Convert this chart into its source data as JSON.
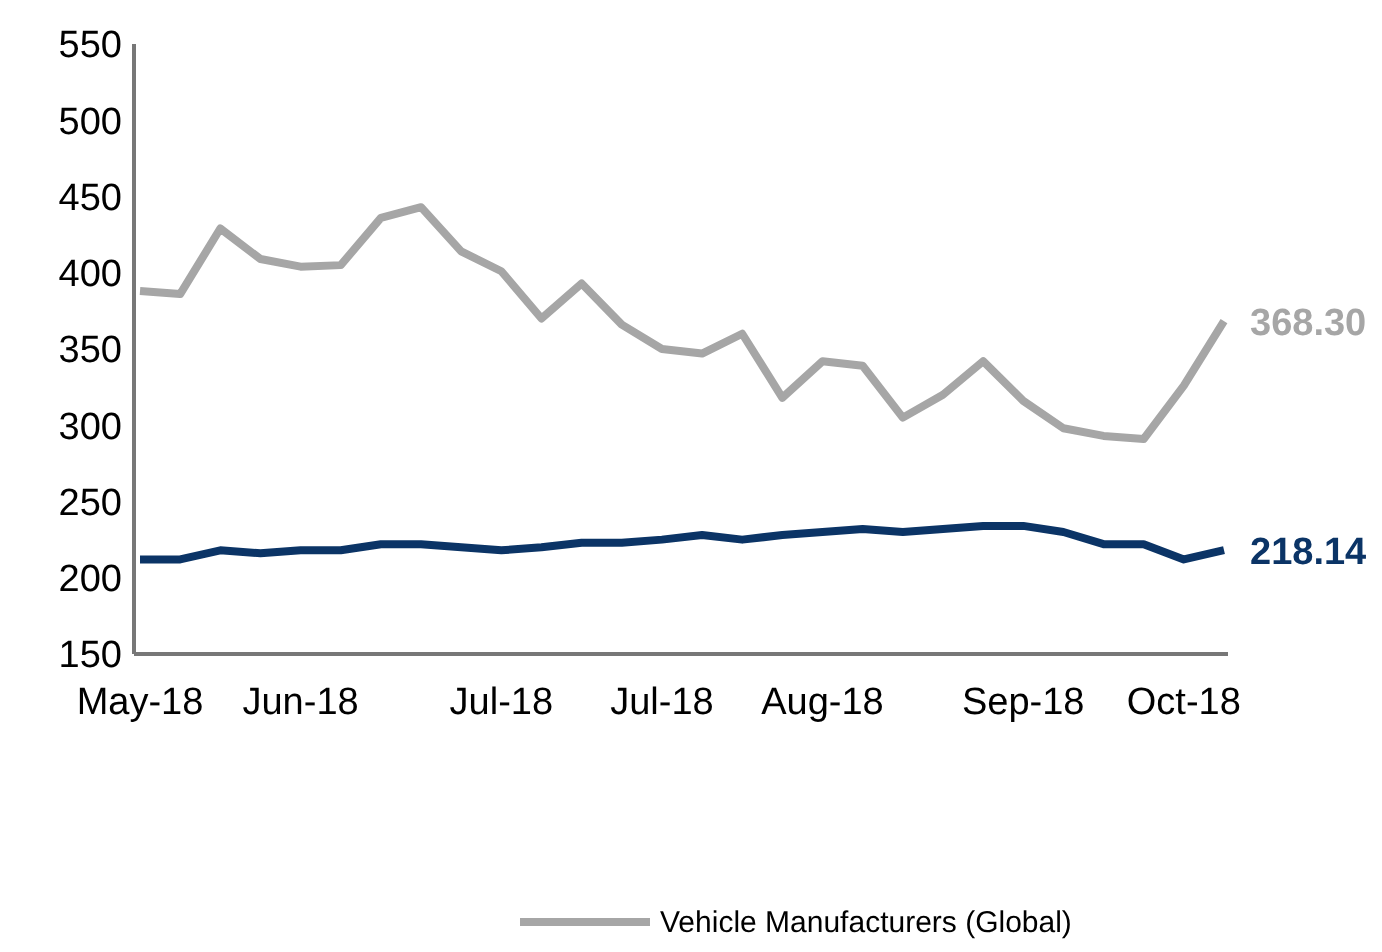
{
  "chart_data": {
    "type": "line",
    "categories": [
      "May-18",
      null,
      null,
      null,
      "Jun-18",
      null,
      null,
      null,
      null,
      "Jul-18",
      null,
      null,
      null,
      "Jul-18",
      null,
      null,
      null,
      "Aug-18",
      null,
      null,
      null,
      null,
      "Sep-18",
      null,
      null,
      null,
      "Oct-18",
      null
    ],
    "series": [
      {
        "color": "#0b3466",
        "values": [
          212,
          212,
          218,
          216,
          218,
          218,
          222,
          222,
          220,
          218,
          220,
          223,
          223,
          225,
          228,
          225,
          228,
          230,
          232,
          230,
          232,
          234,
          234,
          230,
          222,
          222,
          212,
          218.14
        ],
        "value_labels": [
          null,
          null,
          null,
          null,
          null,
          null,
          null,
          null,
          null,
          null,
          null,
          null,
          null,
          null,
          null,
          null,
          null,
          null,
          null,
          null,
          null,
          null,
          null,
          null,
          null,
          null,
          null,
          "218.14"
        ]
      },
      {
        "name": "Vehicle Manufacturers (Global)",
        "color": "#a6a6a6",
        "values": [
          388,
          386,
          429,
          409,
          404,
          405,
          436,
          443,
          414,
          401,
          370,
          393,
          366,
          350,
          347,
          360,
          318,
          342,
          339,
          305,
          320,
          342,
          316,
          298,
          293,
          291,
          326,
          368.3
        ],
        "value_labels": [
          null,
          null,
          null,
          null,
          null,
          null,
          null,
          null,
          null,
          null,
          null,
          null,
          null,
          null,
          null,
          null,
          null,
          null,
          null,
          null,
          null,
          null,
          null,
          null,
          null,
          null,
          null,
          "368.30"
        ]
      }
    ],
    "ylim": [
      150,
      550
    ],
    "yticks": [
      150,
      200,
      250,
      300,
      350,
      400,
      450,
      500,
      550
    ],
    "grid": false,
    "legend": "bottom",
    "marker": "none",
    "line_style": "solid"
  }
}
